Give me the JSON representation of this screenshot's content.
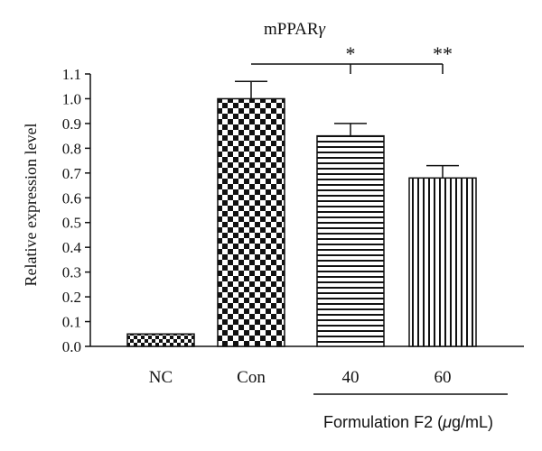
{
  "chart_data": {
    "type": "bar",
    "title_main": "mPPAR",
    "title_sym": "γ",
    "ylabel": "Relative expression level",
    "ylim": [
      0.0,
      1.1
    ],
    "yticks": [
      "0.0",
      "0.1",
      "0.2",
      "0.3",
      "0.4",
      "0.5",
      "0.6",
      "0.7",
      "0.8",
      "0.9",
      "1.0",
      "1.1"
    ],
    "categories": [
      "NC",
      "Con",
      "40",
      "60"
    ],
    "values": [
      0.05,
      1.0,
      0.85,
      0.68
    ],
    "errors": [
      0.0,
      0.07,
      0.05,
      0.05
    ],
    "patterns": [
      "checker-small",
      "checker-large",
      "horizontal-lines",
      "vertical-lines"
    ],
    "significance": [
      "*",
      "**"
    ],
    "group_label_pre": "Formulation F2 (",
    "group_label_mu": "μ",
    "group_label_post": "g/mL)",
    "colors": {
      "ink": "#111111",
      "background": "#ffffff"
    }
  }
}
